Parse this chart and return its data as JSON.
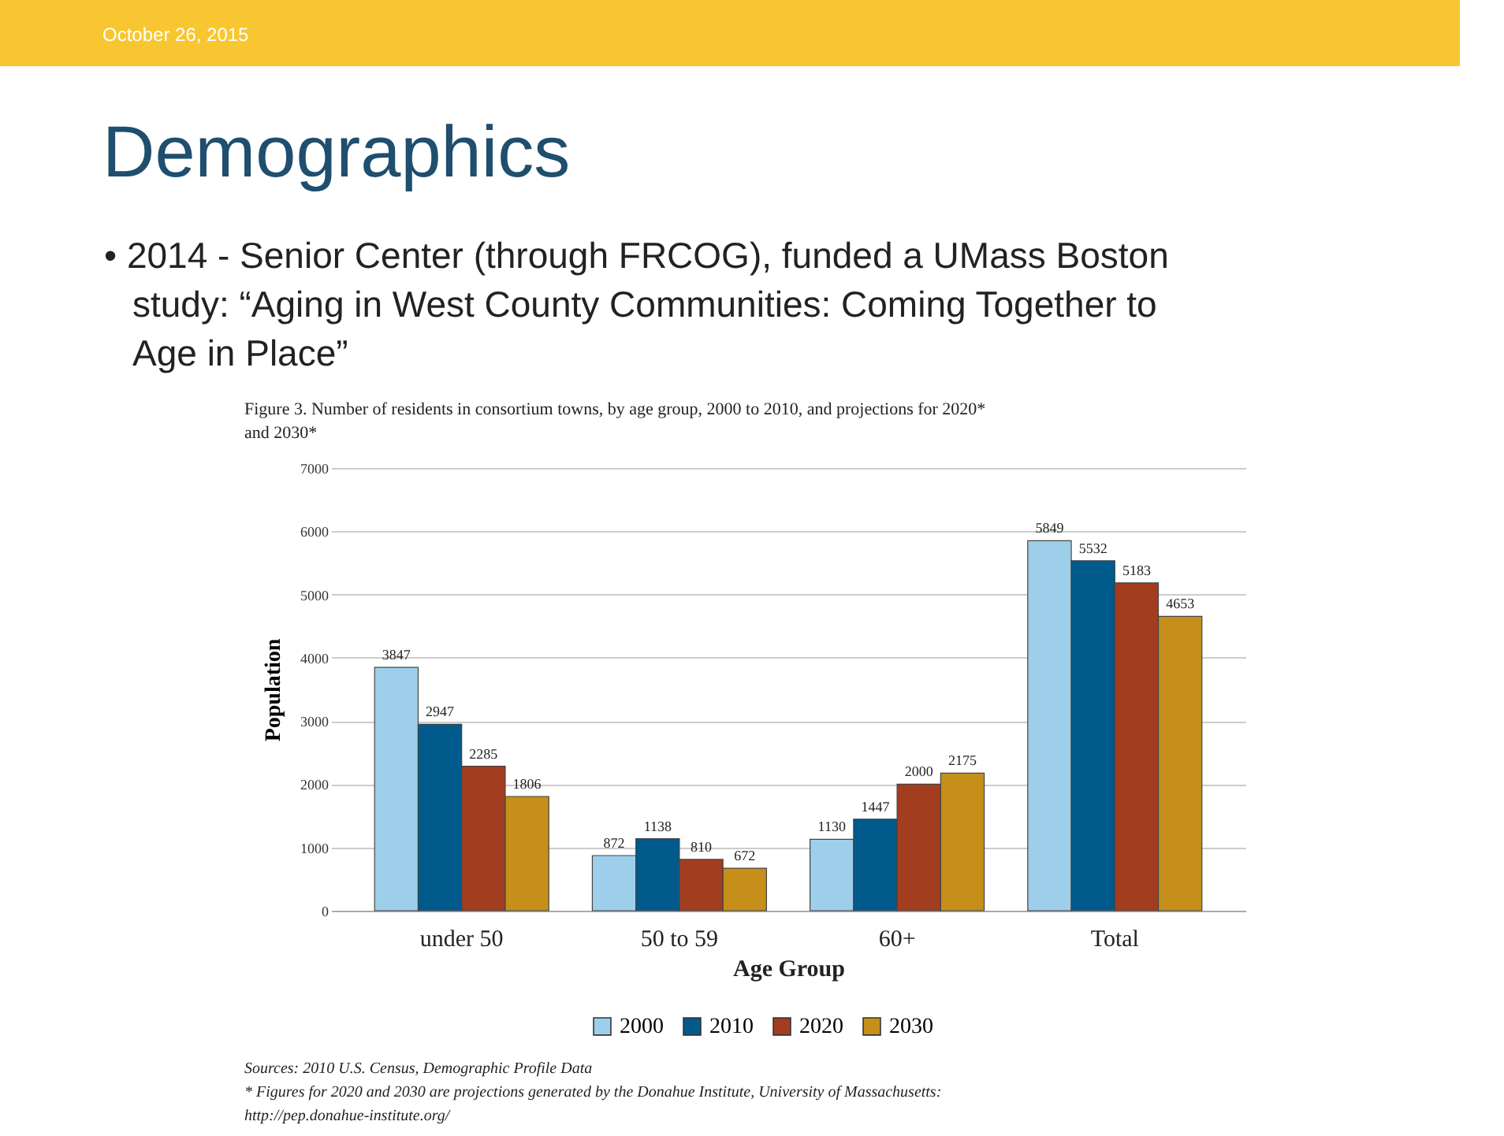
{
  "chart_data": {
    "type": "bar",
    "title": "Demographics",
    "subtitle": [
      "• 2014 - Senior Center (through FRCOG), funded a UMass Boston",
      "study: “Aging in West County Communities: Coming Together to",
      "Age in Place”"
    ],
    "xlabel": "Age Group",
    "ylabel": "Population",
    "categories": [
      "under 50",
      "50 to 59",
      "60+",
      "Total"
    ],
    "series": [
      {
        "name": "2000",
        "color": "#9ecfea",
        "values": [
          3847,
          872,
          1130,
          5849
        ]
      },
      {
        "name": "2010",
        "color": "#005a8c",
        "values": [
          2947,
          1138,
          1447,
          5532
        ]
      },
      {
        "name": "2020",
        "color": "#a33d1f",
        "values": [
          2285,
          810,
          2000,
          5183
        ]
      },
      {
        "name": "2030",
        "color": "#c58f1a",
        "values": [
          1806,
          672,
          2175,
          4653
        ]
      }
    ],
    "ylim": [
      0,
      7000
    ],
    "yticks": [
      0,
      1000,
      2000,
      3000,
      4000,
      5000,
      6000,
      7000
    ],
    "grid": "y",
    "legend": "bottom",
    "data_labels": true,
    "annotations": [
      "October 26, 2015",
      "Figure 3. Number of residents in consortium towns, by age group, 2000 to 2010, and projections for 2020* and 2030*",
      "Sources: 2010 U.S. Census, Demographic Profile Data",
      "* Figures for 2020 and 2030 are projections generated by the Donahue Institute, University of Massachusetts: http://pep.donahue-institute.org/"
    ]
  }
}
